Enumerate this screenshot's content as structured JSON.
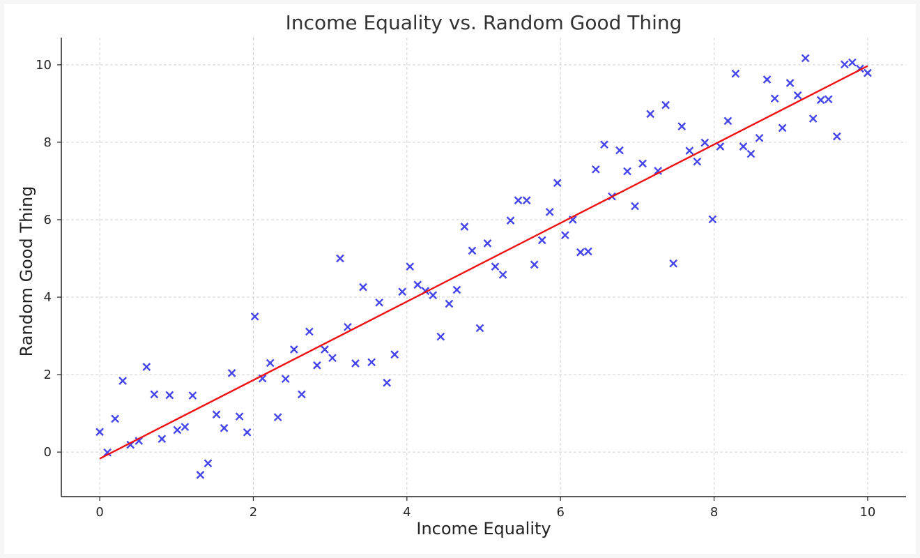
{
  "chart_data": {
    "type": "scatter",
    "title": "Income Equality vs. Random Good Thing",
    "xlabel": "Income Equality",
    "ylabel": "Random Good Thing",
    "xlim": [
      -0.5,
      10.5
    ],
    "ylim": [
      -1.15,
      10.7
    ],
    "xticks": [
      0,
      2,
      4,
      6,
      8,
      10
    ],
    "yticks": [
      0,
      2,
      4,
      6,
      8,
      10
    ],
    "grid": true,
    "series": [
      {
        "marker": "x",
        "color": "#4444ee",
        "points": [
          [
            0.0,
            0.52
          ],
          [
            0.1,
            -0.01
          ],
          [
            0.2,
            0.86
          ],
          [
            0.3,
            1.84
          ],
          [
            0.4,
            0.19
          ],
          [
            0.51,
            0.29
          ],
          [
            0.61,
            2.2
          ],
          [
            0.71,
            1.49
          ],
          [
            0.81,
            0.34
          ],
          [
            0.91,
            1.47
          ],
          [
            1.01,
            0.57
          ],
          [
            1.11,
            0.65
          ],
          [
            1.21,
            1.46
          ],
          [
            1.31,
            -0.59
          ],
          [
            1.41,
            -0.29
          ],
          [
            1.52,
            0.97
          ],
          [
            1.62,
            0.62
          ],
          [
            1.72,
            2.04
          ],
          [
            1.82,
            0.92
          ],
          [
            1.92,
            0.51
          ],
          [
            2.02,
            3.5
          ],
          [
            2.12,
            1.9
          ],
          [
            2.22,
            2.3
          ],
          [
            2.32,
            0.9
          ],
          [
            2.42,
            1.89
          ],
          [
            2.53,
            2.65
          ],
          [
            2.63,
            1.49
          ],
          [
            2.73,
            3.11
          ],
          [
            2.83,
            2.24
          ],
          [
            2.93,
            2.65
          ],
          [
            3.03,
            2.43
          ],
          [
            3.13,
            5.0
          ],
          [
            3.23,
            3.23
          ],
          [
            3.33,
            2.29
          ],
          [
            3.43,
            4.26
          ],
          [
            3.54,
            2.32
          ],
          [
            3.64,
            3.86
          ],
          [
            3.74,
            1.79
          ],
          [
            3.84,
            2.52
          ],
          [
            3.94,
            4.14
          ],
          [
            4.04,
            4.79
          ],
          [
            4.14,
            4.32
          ],
          [
            4.24,
            4.16
          ],
          [
            4.34,
            4.05
          ],
          [
            4.44,
            2.98
          ],
          [
            4.55,
            3.83
          ],
          [
            4.65,
            4.19
          ],
          [
            4.75,
            5.82
          ],
          [
            4.85,
            5.2
          ],
          [
            4.95,
            3.2
          ],
          [
            5.05,
            5.39
          ],
          [
            5.15,
            4.79
          ],
          [
            5.25,
            4.58
          ],
          [
            5.35,
            5.98
          ],
          [
            5.45,
            6.5
          ],
          [
            5.56,
            6.5
          ],
          [
            5.66,
            4.84
          ],
          [
            5.76,
            5.47
          ],
          [
            5.86,
            6.2
          ],
          [
            5.96,
            6.95
          ],
          [
            6.06,
            5.6
          ],
          [
            6.16,
            6.0
          ],
          [
            6.26,
            5.16
          ],
          [
            6.36,
            5.18
          ],
          [
            6.46,
            7.3
          ],
          [
            6.57,
            7.94
          ],
          [
            6.67,
            6.6
          ],
          [
            6.77,
            7.79
          ],
          [
            6.87,
            7.25
          ],
          [
            6.97,
            6.35
          ],
          [
            7.07,
            7.45
          ],
          [
            7.17,
            8.73
          ],
          [
            7.27,
            7.26
          ],
          [
            7.37,
            8.96
          ],
          [
            7.47,
            4.87
          ],
          [
            7.58,
            8.41
          ],
          [
            7.68,
            7.78
          ],
          [
            7.78,
            7.5
          ],
          [
            7.88,
            7.99
          ],
          [
            7.98,
            6.01
          ],
          [
            8.08,
            7.89
          ],
          [
            8.18,
            8.55
          ],
          [
            8.28,
            9.77
          ],
          [
            8.38,
            7.89
          ],
          [
            8.48,
            7.7
          ],
          [
            8.59,
            8.11
          ],
          [
            8.69,
            9.62
          ],
          [
            8.79,
            9.13
          ],
          [
            8.89,
            8.37
          ],
          [
            8.99,
            9.53
          ],
          [
            9.09,
            9.21
          ],
          [
            9.19,
            10.17
          ],
          [
            9.29,
            8.61
          ],
          [
            9.39,
            9.09
          ],
          [
            9.49,
            9.11
          ],
          [
            9.6,
            8.15
          ],
          [
            9.7,
            10.01
          ],
          [
            9.8,
            10.06
          ],
          [
            9.9,
            9.9
          ],
          [
            10.0,
            9.79
          ]
        ]
      },
      {
        "type": "line",
        "color": "#ee1111",
        "x": [
          0,
          10
        ],
        "y": [
          -0.17,
          9.97
        ]
      }
    ]
  }
}
